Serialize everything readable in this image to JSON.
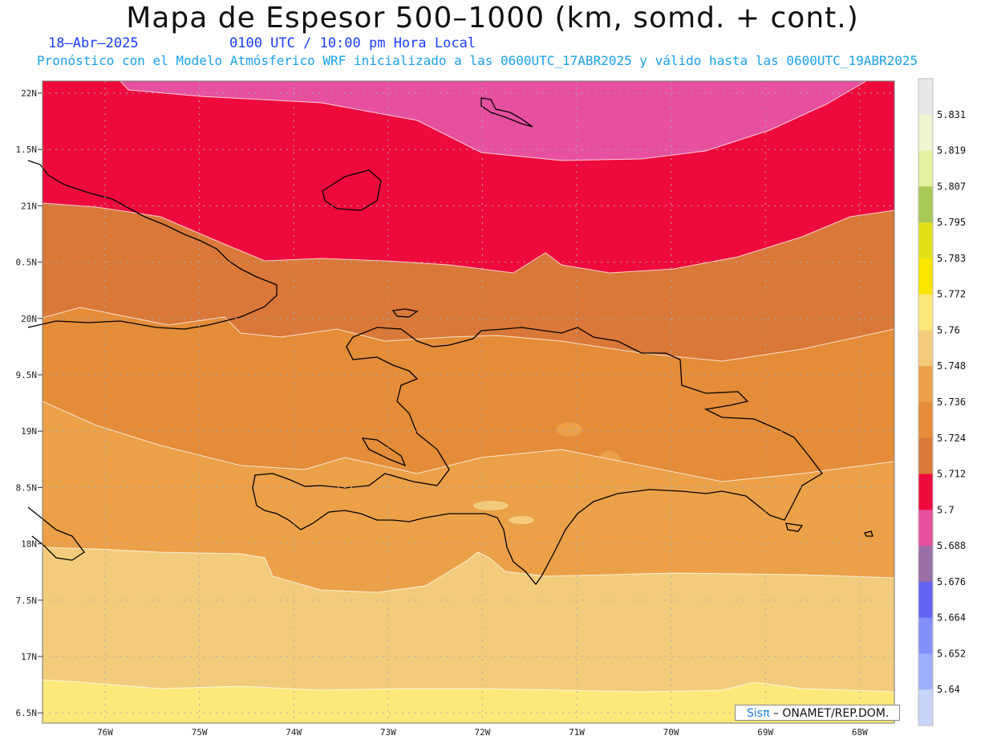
{
  "header": {
    "title": "Mapa de Espesor 500–1000 (km, somd. + cont.)",
    "date": "18–Abr–2025",
    "time": "0100 UTC / 10:00 pm Hora Local",
    "forecast": "Pronóstico con el Modelo Atmósferico WRF inicializado a las 0600UTC_17ABR2025 y válido hasta las  0600UTC_19ABR2025"
  },
  "axes": {
    "lat_labels": [
      "22N",
      "1.5N",
      "21N",
      "0.5N",
      "20N",
      "9.5N",
      "19N",
      "8.5N",
      "18N",
      "7.5N",
      "17N",
      "6.5N"
    ],
    "lon_labels": [
      "76W",
      "75W",
      "74W",
      "73W",
      "72W",
      "71W",
      "70W",
      "69W",
      "68W"
    ]
  },
  "colorbar": {
    "levels": [
      "5.831",
      "5.819",
      "5.807",
      "5.795",
      "5.783",
      "5.772",
      "5.76",
      "5.748",
      "5.736",
      "5.724",
      "5.712",
      "5.7",
      "5.688",
      "5.676",
      "5.664",
      "5.652",
      "5.64"
    ],
    "colors": [
      "#e8e8e8",
      "#f0f4d0",
      "#e2f2a0",
      "#a8c858",
      "#e2e21a",
      "#fae600",
      "#fde97a",
      "#f2cc7c",
      "#eca048",
      "#e48c38",
      "#d97838",
      "#ee0a3c",
      "#e6509e",
      "#9a6ea6",
      "#6464f2",
      "#8490fa",
      "#9cb0fa",
      "#c8d4f8"
    ]
  },
  "map_colors": {
    "pink": "#e6509e",
    "red": "#ee0a3c",
    "dark_orange": "#d97838",
    "orange": "#e48c38",
    "light_orange": "#eca048",
    "tan": "#f2cc7c",
    "yellow": "#fde97a"
  },
  "credit": {
    "brand": "Sisπ",
    "text": "– ONAMET/REP.DOM."
  }
}
